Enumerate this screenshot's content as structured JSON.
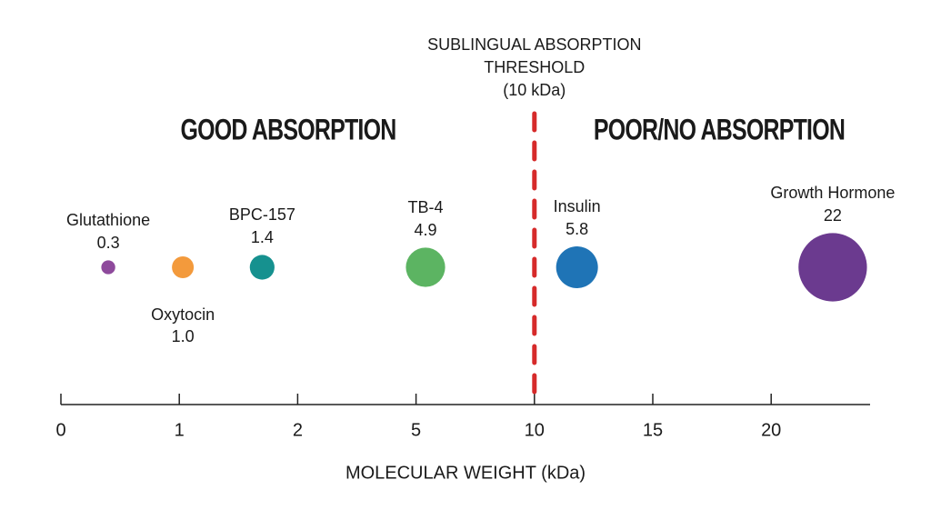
{
  "chart_data": {
    "type": "bubble",
    "xlabel": "MOLECULAR WEIGHT (kDa)",
    "categories": [
      "Glutathione",
      "Oxytocin",
      "BPC-157",
      "TB-4",
      "Insulin",
      "Growth Hormone"
    ],
    "x": [
      0.4,
      1.03,
      1.7,
      5.4,
      11.8,
      22.6
    ],
    "values": [
      0.3,
      1,
      1.4,
      4.9,
      5.8,
      22
    ],
    "value_labels": [
      "0.3",
      "1.0",
      "1.4",
      "4.9",
      "5.8",
      "22"
    ],
    "colors": [
      "#8e4a9c",
      "#f39a3c",
      "#16918f",
      "#5cb462",
      "#1f74b6",
      "#6b3a8f"
    ],
    "xlim": [
      0,
      24
    ],
    "xticks": [
      0,
      1,
      2,
      5,
      10,
      15,
      20
    ],
    "threshold": 10,
    "threshold_label": [
      "SUBLINGUAL ABSORPTION",
      "THRESHOLD",
      "(10 kDa)"
    ],
    "threshold_color": "#d62a2a",
    "regions": [
      "GOOD ABSORPTION",
      "POOR/NO ABSORPTION"
    ]
  }
}
